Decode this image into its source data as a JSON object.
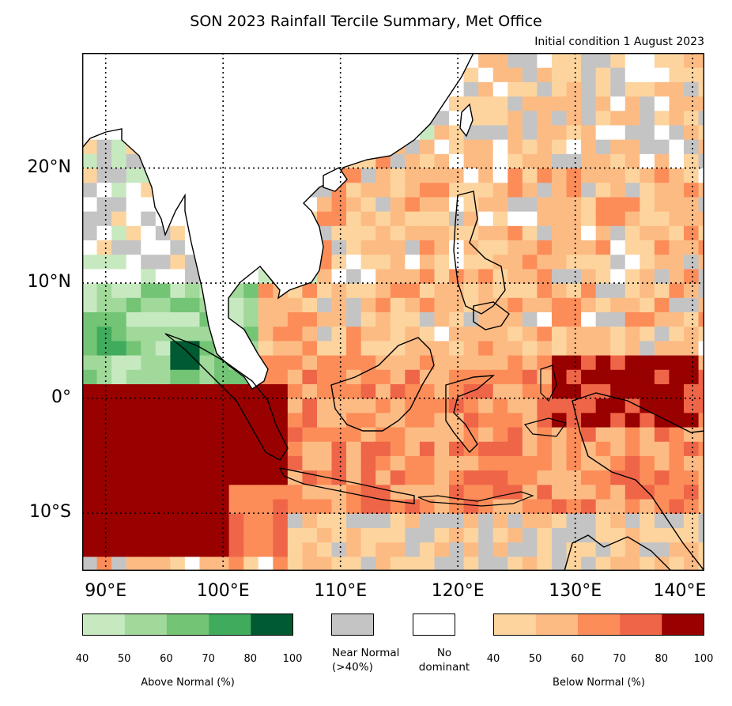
{
  "title": "SON 2023 Rainfall Tercile Summary, Met Office",
  "subtitle": "Initial condition 1 August 2023",
  "map": {
    "lon_range": [
      88,
      141
    ],
    "lat_range": [
      -15,
      30
    ],
    "lat_labels": [
      "20°N",
      "10°N",
      "0°",
      "10°S"
    ],
    "lon_labels": [
      "90°E",
      "100°E",
      "110°E",
      "120°E",
      "130°E",
      "140°E"
    ],
    "gridline_lons": [
      90,
      100,
      110,
      120,
      130,
      140
    ],
    "gridline_lats": [
      20,
      10,
      0,
      -10
    ]
  },
  "legend": {
    "above": {
      "title": "Above Normal (%)",
      "ticks": [
        "40",
        "50",
        "60",
        "70",
        "80",
        "100"
      ],
      "colors": [
        "#c7e9c0",
        "#a1d99b",
        "#74c476",
        "#41ab5d",
        "#005a32"
      ]
    },
    "near": {
      "label_line1": "Near Normal",
      "label_line2": "(>40%)",
      "color": "#c4c4c4"
    },
    "none": {
      "label_line1": "No",
      "label_line2": "dominant",
      "color": "#ffffff"
    },
    "below": {
      "title": "Below Normal (%)",
      "ticks": [
        "40",
        "50",
        "60",
        "70",
        "80",
        "100"
      ],
      "colors": [
        "#fdd49e",
        "#fdbb84",
        "#fc8d59",
        "#ef6548",
        "#990000"
      ]
    }
  }
}
